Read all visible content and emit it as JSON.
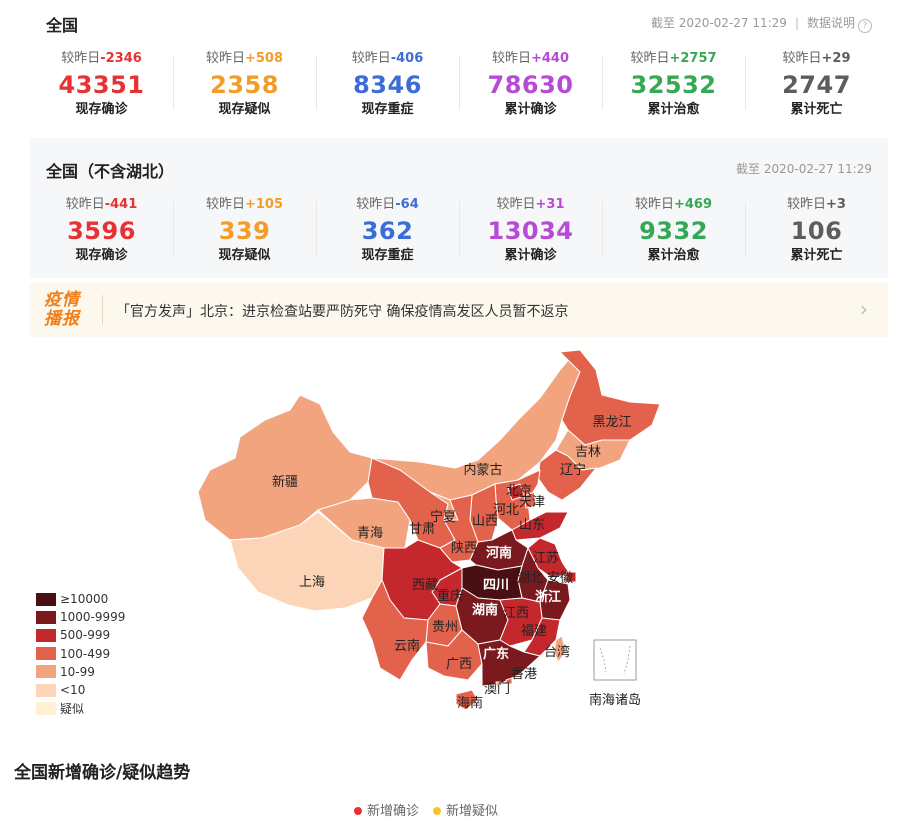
{
  "national": {
    "title": "全国",
    "updated": "截至 2020-02-27 11:29",
    "data_note": "数据说明",
    "stats": [
      {
        "delta_prefix": "较昨日",
        "delta": "-2346",
        "value": "43351",
        "label": "现存确诊",
        "color": "#e83132"
      },
      {
        "delta_prefix": "较昨日",
        "delta": "+508",
        "value": "2358",
        "label": "现存疑似",
        "color": "#f29d28"
      },
      {
        "delta_prefix": "较昨日",
        "delta": "-406",
        "value": "8346",
        "label": "现存重症",
        "color": "#3c6dd6"
      },
      {
        "delta_prefix": "较昨日",
        "delta": "+440",
        "value": "78630",
        "label": "累计确诊",
        "color": "#b84ad6"
      },
      {
        "delta_prefix": "较昨日",
        "delta": "+2757",
        "value": "32532",
        "label": "累计治愈",
        "color": "#36a854"
      },
      {
        "delta_prefix": "较昨日",
        "delta": "+29",
        "value": "2747",
        "label": "累计死亡",
        "color": "#5d5d5d"
      }
    ]
  },
  "excl_hubei": {
    "title": "全国（不含湖北）",
    "updated": "截至 2020-02-27 11:29",
    "stats": [
      {
        "delta_prefix": "较昨日",
        "delta": "-441",
        "value": "3596",
        "label": "现存确诊",
        "color": "#e83132"
      },
      {
        "delta_prefix": "较昨日",
        "delta": "+105",
        "value": "339",
        "label": "现存疑似",
        "color": "#f29d28"
      },
      {
        "delta_prefix": "较昨日",
        "delta": "-64",
        "value": "362",
        "label": "现存重症",
        "color": "#3c6dd6"
      },
      {
        "delta_prefix": "较昨日",
        "delta": "+31",
        "value": "13034",
        "label": "累计确诊",
        "color": "#b84ad6"
      },
      {
        "delta_prefix": "较昨日",
        "delta": "+469",
        "value": "9332",
        "label": "累计治愈",
        "color": "#36a854"
      },
      {
        "delta_prefix": "较昨日",
        "delta": "+3",
        "value": "106",
        "label": "累计死亡",
        "color": "#5d5d5d"
      }
    ]
  },
  "news": {
    "logo_line1": "疫情",
    "logo_line2": "播报",
    "text": "「官方发声」北京：进京检查站要严防死守 确保疫情高发区人员暂不返京",
    "arrow": "›"
  },
  "map": {
    "legend": [
      {
        "label": "≥10000",
        "color": "#4a0f13"
      },
      {
        "label": "1000-9999",
        "color": "#7a1a1f"
      },
      {
        "label": "500-999",
        "color": "#c4282c"
      },
      {
        "label": "100-499",
        "color": "#e3624c"
      },
      {
        "label": "10-99",
        "color": "#f2a47f"
      },
      {
        "label": "<10",
        "color": "#fcd5b8"
      },
      {
        "label": "疑似",
        "color": "#fff0d6"
      }
    ],
    "provinces": [
      "黑龙江",
      "吉林",
      "辽宁",
      "内蒙古",
      "北京",
      "天津",
      "河北",
      "山西",
      "山东",
      "新疆",
      "宁夏",
      "甘肃",
      "青海",
      "陕西",
      "河南",
      "江苏",
      "安徽",
      "上海",
      "西藏",
      "四川",
      "湖北",
      "重庆",
      "浙江",
      "湖南",
      "江西",
      "贵州",
      "云南",
      "福建",
      "台湾",
      "广西",
      "广东",
      "香港",
      "澳门",
      "海南",
      "南海诸岛"
    ]
  },
  "trend": {
    "title": "全国新增确诊/疑似趋势",
    "legend": [
      {
        "label": "新增确诊",
        "color": "#e83132"
      },
      {
        "label": "新增疑似",
        "color": "#f7c32b"
      }
    ]
  }
}
